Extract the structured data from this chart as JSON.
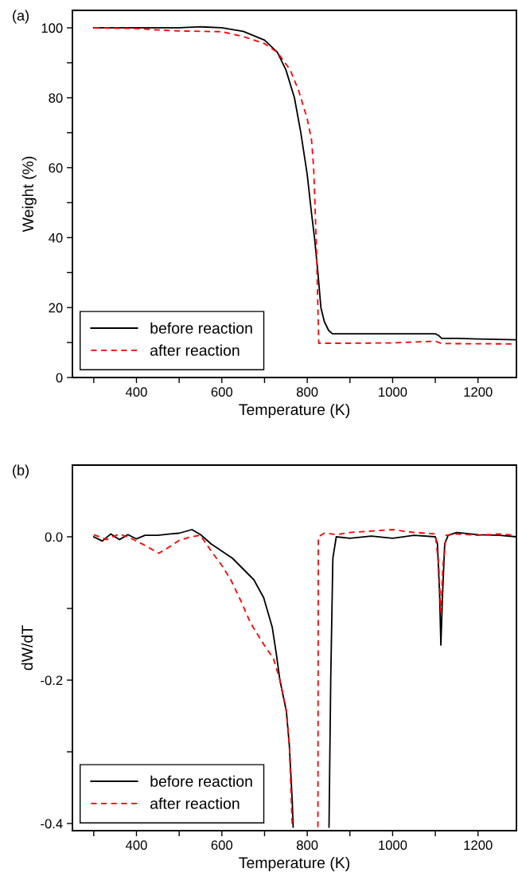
{
  "chart_data": [
    {
      "type": "line",
      "xlabel": "Temperature (K)",
      "ylabel": "Weight (%)",
      "annotations": [
        "(a)"
      ],
      "xlim": [
        250,
        1290
      ],
      "ylim": [
        0,
        105
      ],
      "xticks": [
        {
          "value": 300,
          "label": null
        },
        400,
        {
          "value": 500,
          "label": null
        },
        600,
        {
          "value": 700,
          "label": null
        },
        800,
        {
          "value": 900,
          "label": null
        },
        1000,
        {
          "value": 1100,
          "label": null
        },
        1200
      ],
      "yticks": [
        0,
        {
          "value": 10,
          "label": null
        },
        20,
        {
          "value": 30,
          "label": null
        },
        40,
        {
          "value": 50,
          "label": null
        },
        60,
        {
          "value": 70,
          "label": null
        },
        80,
        {
          "value": 90,
          "label": null
        },
        100
      ],
      "grid": false,
      "legend": "bottom left",
      "series": [
        {
          "name": "before reaction",
          "color": "#000000",
          "line_style": "solid",
          "x": [
            300,
            400,
            500,
            550,
            600,
            650,
            700,
            730,
            750,
            770,
            785,
            800,
            810,
            817,
            825,
            832,
            840,
            850,
            859,
            900,
            1000,
            1100,
            1108,
            1115,
            1150,
            1200,
            1290
          ],
          "values": [
            100,
            100,
            100,
            100.3,
            100,
            99,
            96.5,
            93,
            88,
            80,
            70,
            58,
            47,
            40,
            30,
            20,
            16,
            13.5,
            12.5,
            12.5,
            12.5,
            12.5,
            12,
            11.2,
            11.2,
            11,
            10.8
          ]
        },
        {
          "name": "after reaction",
          "color": "#ff0000",
          "line_style": "dashed",
          "x": [
            300,
            400,
            450,
            500,
            600,
            650,
            700,
            730,
            760,
            780,
            800,
            810,
            815,
            818,
            822,
            825,
            827,
            900,
            1000,
            1100,
            1115,
            1290
          ],
          "values": [
            100,
            99.8,
            99.4,
            99.1,
            98.9,
            97.5,
            95.5,
            93,
            88,
            82,
            74,
            68,
            60,
            50,
            35,
            20,
            9.8,
            9.8,
            9.9,
            10.4,
            9.7,
            9.6
          ]
        }
      ]
    },
    {
      "type": "line",
      "xlabel": "Temperature (K)",
      "ylabel": "dW/dT",
      "annotations": [
        "(b)"
      ],
      "xlim": [
        250,
        1290
      ],
      "ylim": [
        -0.41,
        0.1
      ],
      "xticks": [
        {
          "value": 300,
          "label": null
        },
        400,
        {
          "value": 500,
          "label": null
        },
        600,
        {
          "value": 700,
          "label": null
        },
        800,
        {
          "value": 900,
          "label": null
        },
        1000,
        {
          "value": 1100,
          "label": null
        },
        1200
      ],
      "yticks": [
        {
          "value": -0.4,
          "label": "-0.4"
        },
        {
          "value": -0.3,
          "label": null
        },
        {
          "value": -0.2,
          "label": "-0.2"
        },
        {
          "value": -0.1,
          "label": null
        },
        {
          "value": 0,
          "label": "0.0"
        }
      ],
      "grid": false,
      "legend": "bottom left",
      "series": [
        {
          "name": "before reaction",
          "color": "#000000",
          "line_style": "solid",
          "x": [
            300,
            320,
            340,
            360,
            380,
            400,
            420,
            450,
            480,
            500,
            530,
            550,
            575,
            600,
            625,
            650,
            675,
            698,
            718,
            728,
            736,
            751,
            758,
            765,
            767,
            850,
            851,
            855,
            860,
            868,
            900,
            950,
            1000,
            1050,
            1100,
            1105,
            1110,
            1113,
            1117,
            1122,
            1130,
            1150,
            1200,
            1250,
            1290
          ],
          "values": [
            0,
            -0.006,
            0.004,
            -0.004,
            0.003,
            -0.003,
            0.002,
            0.002,
            0.004,
            0.005,
            0.01,
            0.003,
            -0.01,
            -0.02,
            -0.03,
            -0.045,
            -0.06,
            -0.085,
            -0.126,
            -0.165,
            -0.2,
            -0.243,
            -0.29,
            -0.37,
            -0.405,
            null,
            -0.405,
            -0.2,
            -0.03,
            0,
            -0.002,
            0.001,
            -0.002,
            0.002,
            0,
            -0.01,
            -0.08,
            -0.151,
            -0.08,
            -0.01,
            0.002,
            0.006,
            0.003,
            0.002,
            0
          ]
        },
        {
          "name": "after reaction",
          "color": "#ff0000",
          "line_style": "dashed",
          "x": [
            300,
            330,
            360,
            390,
            420,
            452,
            475,
            500,
            528,
            550,
            575,
            600,
            621,
            645,
            667,
            698,
            721,
            736,
            751,
            758,
            765,
            795,
            825,
            826,
            840,
            870,
            900,
            950,
            1000,
            1050,
            1100,
            1108,
            1113,
            1118,
            1125,
            1150,
            1200,
            1250,
            1290
          ],
          "values": [
            0.003,
            -0.004,
            0.004,
            -0.003,
            -0.012,
            -0.023,
            -0.015,
            -0.005,
            0,
            0.002,
            -0.02,
            -0.04,
            -0.06,
            -0.09,
            -0.12,
            -0.15,
            -0.17,
            -0.2,
            -0.243,
            -0.29,
            -0.405,
            null,
            -0.405,
            0,
            0.005,
            0.003,
            0.006,
            0.008,
            0.01,
            0.006,
            0.004,
            -0.04,
            -0.105,
            -0.04,
            0.002,
            0.004,
            0.002,
            0.004,
            0.002
          ]
        }
      ]
    }
  ]
}
